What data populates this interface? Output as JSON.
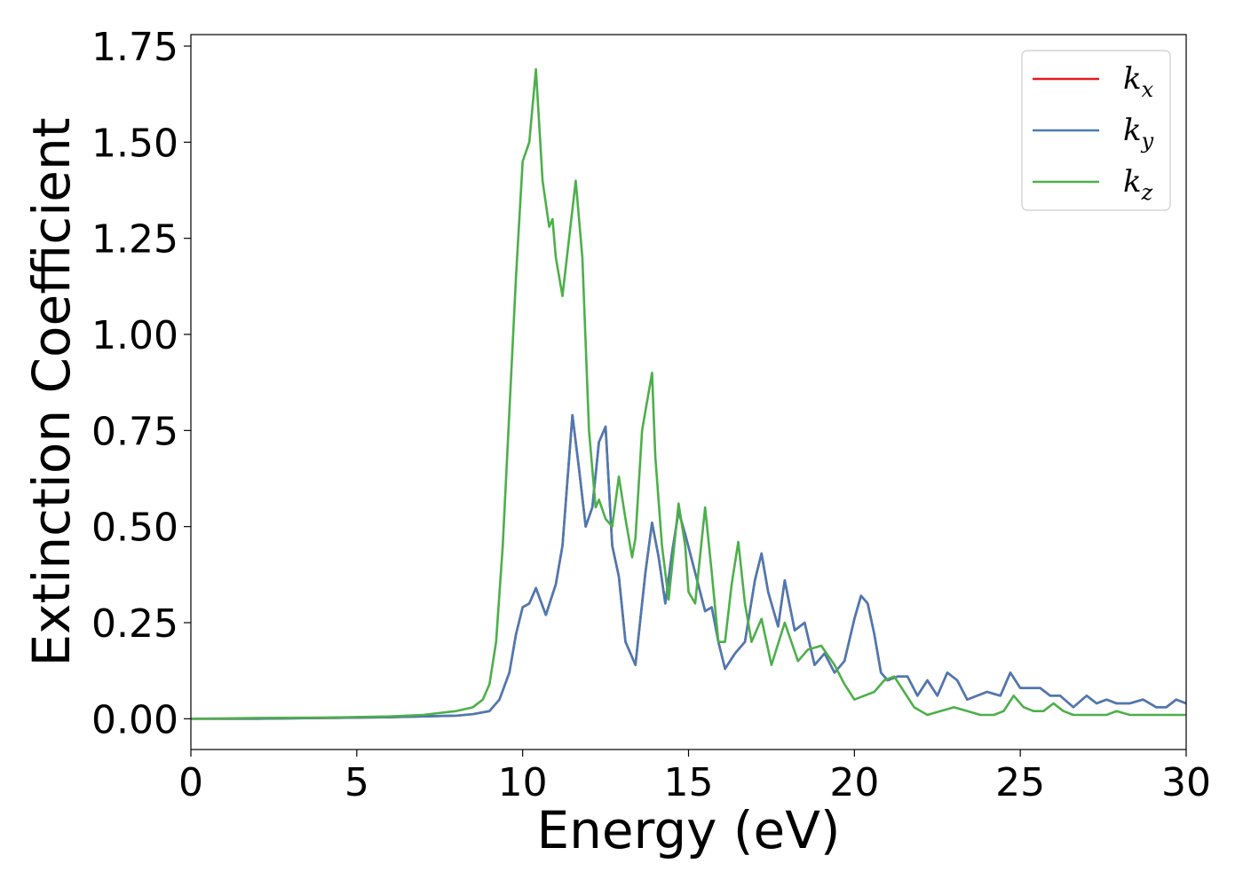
{
  "chart_data": {
    "type": "line",
    "title": "",
    "xlabel": "Energy (eV)",
    "ylabel": "Extinction Coefficient",
    "xlim": [
      0,
      30
    ],
    "ylim": [
      -0.08,
      1.78
    ],
    "xticks": [
      0,
      5,
      10,
      15,
      20,
      25,
      30
    ],
    "xtick_labels": [
      "0",
      "5",
      "10",
      "15",
      "20",
      "25",
      "30"
    ],
    "yticks": [
      0,
      0.25,
      0.5,
      0.75,
      1.0,
      1.25,
      1.5,
      1.75
    ],
    "ytick_labels": [
      "0.00",
      "0.25",
      "0.50",
      "0.75",
      "1.00",
      "1.25",
      "1.50",
      "1.75"
    ],
    "grid": false,
    "legend_position": "top-right",
    "series": [
      {
        "name": "k_x",
        "legend_base": "k",
        "legend_sub": "x",
        "color": "#e41a1c",
        "x": [
          0,
          2,
          4,
          6,
          7,
          8,
          8.5,
          9,
          9.3,
          9.6,
          9.8,
          10.0,
          10.2,
          10.4,
          10.7,
          11.0,
          11.2,
          11.5,
          11.7,
          11.9,
          12.1,
          12.3,
          12.5,
          12.7,
          12.9,
          13.1,
          13.4,
          13.7,
          13.9,
          14.1,
          14.3,
          14.5,
          14.7,
          14.9,
          15.2,
          15.5,
          15.7,
          15.9,
          16.1,
          16.4,
          16.7,
          17.0,
          17.2,
          17.4,
          17.7,
          17.9,
          18.2,
          18.5,
          18.8,
          19.1,
          19.4,
          19.7,
          20.0,
          20.2,
          20.4,
          20.6,
          20.8,
          21.0,
          21.3,
          21.6,
          21.9,
          22.2,
          22.5,
          22.8,
          23.1,
          23.4,
          23.7,
          24.0,
          24.4,
          24.7,
          25.0,
          25.3,
          25.6,
          25.9,
          26.2,
          26.6,
          27.0,
          27.3,
          27.6,
          27.9,
          28.3,
          28.7,
          29.1,
          29.4,
          29.7,
          30.0
        ],
        "y": [
          0.0,
          0.0,
          0.002,
          0.004,
          0.006,
          0.008,
          0.012,
          0.02,
          0.05,
          0.12,
          0.22,
          0.29,
          0.3,
          0.34,
          0.27,
          0.35,
          0.45,
          0.79,
          0.65,
          0.5,
          0.55,
          0.72,
          0.76,
          0.45,
          0.37,
          0.2,
          0.14,
          0.38,
          0.51,
          0.42,
          0.3,
          0.43,
          0.54,
          0.48,
          0.38,
          0.28,
          0.29,
          0.2,
          0.13,
          0.17,
          0.2,
          0.36,
          0.43,
          0.33,
          0.24,
          0.36,
          0.23,
          0.25,
          0.14,
          0.17,
          0.12,
          0.15,
          0.26,
          0.32,
          0.3,
          0.22,
          0.12,
          0.1,
          0.11,
          0.11,
          0.06,
          0.1,
          0.06,
          0.12,
          0.1,
          0.05,
          0.06,
          0.07,
          0.06,
          0.12,
          0.08,
          0.08,
          0.08,
          0.06,
          0.06,
          0.03,
          0.06,
          0.04,
          0.05,
          0.04,
          0.04,
          0.05,
          0.03,
          0.03,
          0.05,
          0.04
        ]
      },
      {
        "name": "k_y",
        "legend_base": "k",
        "legend_sub": "y",
        "color": "#4a7ab3",
        "x": [
          0,
          2,
          4,
          6,
          7,
          8,
          8.5,
          9,
          9.3,
          9.6,
          9.8,
          10.0,
          10.2,
          10.4,
          10.7,
          11.0,
          11.2,
          11.5,
          11.7,
          11.9,
          12.1,
          12.3,
          12.5,
          12.7,
          12.9,
          13.1,
          13.4,
          13.7,
          13.9,
          14.1,
          14.3,
          14.5,
          14.7,
          14.9,
          15.2,
          15.5,
          15.7,
          15.9,
          16.1,
          16.4,
          16.7,
          17.0,
          17.2,
          17.4,
          17.7,
          17.9,
          18.2,
          18.5,
          18.8,
          19.1,
          19.4,
          19.7,
          20.0,
          20.2,
          20.4,
          20.6,
          20.8,
          21.0,
          21.3,
          21.6,
          21.9,
          22.2,
          22.5,
          22.8,
          23.1,
          23.4,
          23.7,
          24.0,
          24.4,
          24.7,
          25.0,
          25.3,
          25.6,
          25.9,
          26.2,
          26.6,
          27.0,
          27.3,
          27.6,
          27.9,
          28.3,
          28.7,
          29.1,
          29.4,
          29.7,
          30.0
        ],
        "y": [
          0.0,
          0.0,
          0.002,
          0.004,
          0.006,
          0.008,
          0.012,
          0.02,
          0.05,
          0.12,
          0.22,
          0.29,
          0.3,
          0.34,
          0.27,
          0.35,
          0.45,
          0.79,
          0.65,
          0.5,
          0.55,
          0.72,
          0.76,
          0.45,
          0.37,
          0.2,
          0.14,
          0.38,
          0.51,
          0.42,
          0.3,
          0.43,
          0.54,
          0.48,
          0.38,
          0.28,
          0.29,
          0.2,
          0.13,
          0.17,
          0.2,
          0.36,
          0.43,
          0.33,
          0.24,
          0.36,
          0.23,
          0.25,
          0.14,
          0.17,
          0.12,
          0.15,
          0.26,
          0.32,
          0.3,
          0.22,
          0.12,
          0.1,
          0.11,
          0.11,
          0.06,
          0.1,
          0.06,
          0.12,
          0.1,
          0.05,
          0.06,
          0.07,
          0.06,
          0.12,
          0.08,
          0.08,
          0.08,
          0.06,
          0.06,
          0.03,
          0.06,
          0.04,
          0.05,
          0.04,
          0.04,
          0.05,
          0.03,
          0.03,
          0.05,
          0.04
        ]
      },
      {
        "name": "k_z",
        "legend_base": "k",
        "legend_sub": "z",
        "color": "#4daf4a",
        "x": [
          0,
          2,
          4,
          6,
          7,
          8,
          8.5,
          8.8,
          9.0,
          9.2,
          9.4,
          9.6,
          9.8,
          10.0,
          10.2,
          10.4,
          10.6,
          10.8,
          10.9,
          11.0,
          11.2,
          11.4,
          11.6,
          11.8,
          12.0,
          12.2,
          12.3,
          12.5,
          12.7,
          12.9,
          13.1,
          13.3,
          13.4,
          13.6,
          13.9,
          14.0,
          14.2,
          14.4,
          14.7,
          14.9,
          15.0,
          15.2,
          15.5,
          15.7,
          15.9,
          16.1,
          16.3,
          16.5,
          16.7,
          16.9,
          17.2,
          17.5,
          17.9,
          18.3,
          18.6,
          19.0,
          19.4,
          19.7,
          20.0,
          20.3,
          20.6,
          20.9,
          21.2,
          21.5,
          21.8,
          22.2,
          22.6,
          23.0,
          23.4,
          23.8,
          24.2,
          24.5,
          24.8,
          25.1,
          25.4,
          25.7,
          26.0,
          26.3,
          26.6,
          26.9,
          27.3,
          27.6,
          27.9,
          28.3,
          28.7,
          29.1,
          29.5,
          30.0
        ],
        "y": [
          0.0,
          0.002,
          0.003,
          0.006,
          0.01,
          0.02,
          0.03,
          0.05,
          0.09,
          0.2,
          0.45,
          0.8,
          1.15,
          1.45,
          1.5,
          1.69,
          1.4,
          1.28,
          1.3,
          1.2,
          1.1,
          1.25,
          1.4,
          1.2,
          0.75,
          0.55,
          0.57,
          0.52,
          0.5,
          0.63,
          0.52,
          0.42,
          0.47,
          0.75,
          0.9,
          0.68,
          0.45,
          0.31,
          0.56,
          0.45,
          0.33,
          0.3,
          0.55,
          0.38,
          0.2,
          0.2,
          0.35,
          0.46,
          0.3,
          0.2,
          0.26,
          0.14,
          0.25,
          0.15,
          0.18,
          0.19,
          0.14,
          0.09,
          0.05,
          0.06,
          0.07,
          0.1,
          0.11,
          0.07,
          0.03,
          0.01,
          0.02,
          0.03,
          0.02,
          0.01,
          0.01,
          0.02,
          0.06,
          0.03,
          0.02,
          0.02,
          0.04,
          0.02,
          0.01,
          0.01,
          0.01,
          0.01,
          0.02,
          0.01,
          0.01,
          0.01,
          0.01,
          0.01
        ]
      }
    ]
  }
}
